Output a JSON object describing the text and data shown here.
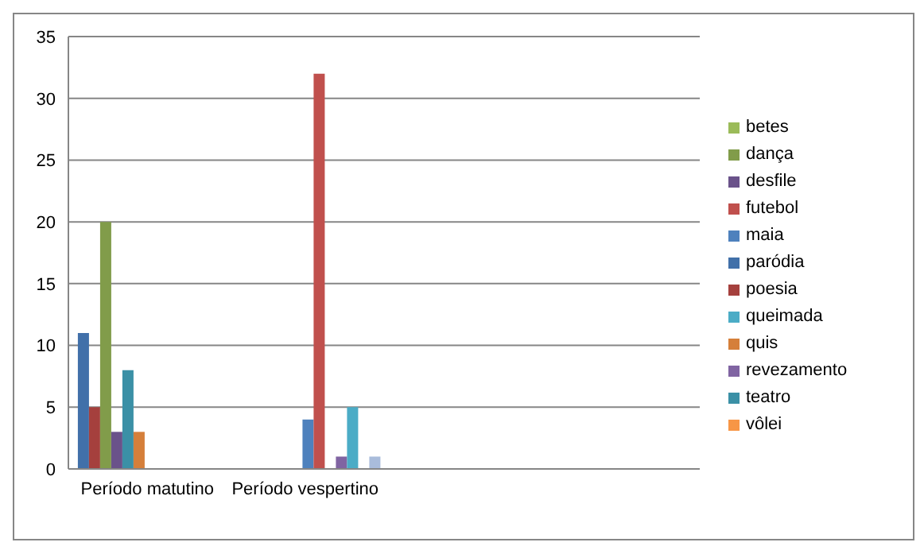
{
  "chart_data": {
    "type": "bar",
    "categories": [
      "Período matutino",
      "Período vespertino",
      null,
      null
    ],
    "series": [
      {
        "name": "paródia",
        "color": "#4170a9",
        "values": [
          11,
          0,
          0,
          0
        ]
      },
      {
        "name": "poesia",
        "color": "#a5403d",
        "values": [
          5,
          0,
          0,
          0
        ]
      },
      {
        "name": "dança",
        "color": "#819c4a",
        "values": [
          20,
          0,
          0,
          0
        ]
      },
      {
        "name": "desfile",
        "color": "#6a528a",
        "values": [
          3,
          0,
          0,
          0
        ]
      },
      {
        "name": "teatro",
        "color": "#3b90a6",
        "values": [
          8,
          0,
          0,
          0
        ]
      },
      {
        "name": "quis",
        "color": "#d57f3a",
        "values": [
          3,
          0,
          0,
          0
        ]
      },
      {
        "name": "maia",
        "color": "#4e81bd",
        "values": [
          0,
          4,
          0,
          0
        ]
      },
      {
        "name": "futebol",
        "color": "#c0504d",
        "values": [
          0,
          32,
          0,
          0
        ]
      },
      {
        "name": "betes",
        "color": "#9bbb59",
        "values": [
          0,
          0,
          0,
          0
        ]
      },
      {
        "name": "revezamento",
        "color": "#8064a2",
        "values": [
          0,
          1,
          0,
          0
        ]
      },
      {
        "name": "queimada",
        "color": "#4bacc6",
        "values": [
          0,
          5,
          0,
          0
        ]
      },
      {
        "name": "vôlei",
        "color": "#f79646",
        "values": [
          0,
          0,
          0,
          0
        ]
      },
      {
        "color": "#a9bcdb",
        "values": [
          0,
          1,
          0,
          0
        ]
      }
    ],
    "ylim": [
      0,
      35
    ],
    "yticks": [
      0,
      5,
      10,
      15,
      20,
      25,
      30,
      35
    ],
    "grid": "y",
    "legend": "right"
  }
}
